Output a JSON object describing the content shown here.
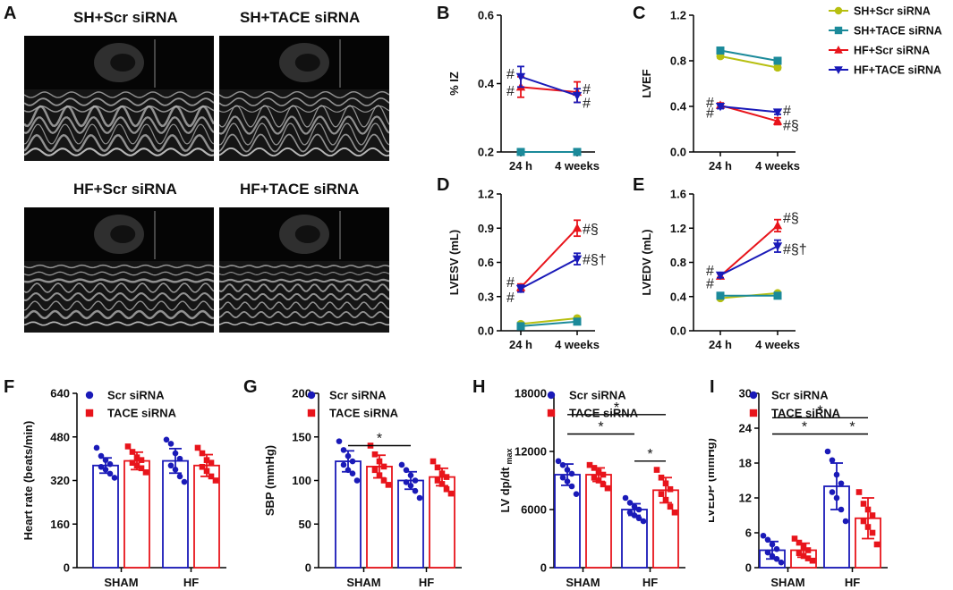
{
  "panel_labels": [
    "A",
    "B",
    "C",
    "D",
    "E",
    "F",
    "G",
    "H",
    "I"
  ],
  "echo": {
    "panels": [
      {
        "title": "SH+Scr siRNA"
      },
      {
        "title": "SH+TACE siRNA"
      },
      {
        "title": "HF+Scr siRNA"
      },
      {
        "title": "HF+TACE siRNA"
      }
    ]
  },
  "legend_top": {
    "entries": [
      {
        "name": "SH+Scr siRNA",
        "color": "#b7bf10",
        "marker": "circle"
      },
      {
        "name": "SH+TACE siRNA",
        "color": "#1b8a9a",
        "marker": "square"
      },
      {
        "name": "HF+Scr siRNA",
        "color": "#e8141b",
        "marker": "triangle-up"
      },
      {
        "name": "HF+TACE siRNA",
        "color": "#1a1ab8",
        "marker": "triangle-down"
      }
    ]
  },
  "chart_data": [
    {
      "id": "B",
      "type": "line",
      "ylabel": "% IZ",
      "xlabel": "",
      "categories": [
        "24 h",
        "4 weeks"
      ],
      "ylim": [
        0.2,
        0.6
      ],
      "yticks": [
        "0.2",
        "0.4",
        "0.6"
      ],
      "series": [
        {
          "name": "SH+Scr siRNA",
          "values": [
            0.2,
            0.2
          ],
          "err": [
            0,
            0
          ]
        },
        {
          "name": "SH+TACE siRNA",
          "values": [
            0.2,
            0.2
          ],
          "err": [
            0,
            0
          ]
        },
        {
          "name": "HF+Scr siRNA",
          "values": [
            0.39,
            0.375
          ],
          "err": [
            0.03,
            0.03
          ]
        },
        {
          "name": "HF+TACE siRNA",
          "values": [
            0.42,
            0.365
          ],
          "err": [
            0.03,
            0.02
          ]
        }
      ],
      "annotations": [
        {
          "text": "#",
          "x": 0,
          "y": 0.43,
          "side": "left"
        },
        {
          "text": "#",
          "x": 0,
          "y": 0.38,
          "side": "left"
        },
        {
          "text": "#",
          "x": 1,
          "y": 0.385,
          "side": "right"
        },
        {
          "text": "#",
          "x": 1,
          "y": 0.345,
          "side": "right"
        }
      ]
    },
    {
      "id": "C",
      "type": "line",
      "ylabel": "LVEF",
      "xlabel": "",
      "categories": [
        "24 h",
        "4 weeks"
      ],
      "ylim": [
        0,
        1.2
      ],
      "yticks": [
        "0.0",
        "0.4",
        "0.8",
        "1.2"
      ],
      "series": [
        {
          "name": "SH+Scr siRNA",
          "values": [
            0.84,
            0.74
          ],
          "err": [
            0.015,
            0.015
          ]
        },
        {
          "name": "SH+TACE siRNA",
          "values": [
            0.89,
            0.8
          ],
          "err": [
            0.015,
            0.015
          ]
        },
        {
          "name": "HF+Scr siRNA",
          "values": [
            0.41,
            0.27
          ],
          "err": [
            0.02,
            0.03
          ]
        },
        {
          "name": "HF+TACE siRNA",
          "values": [
            0.4,
            0.35
          ],
          "err": [
            0.02,
            0.02
          ]
        }
      ],
      "annotations": [
        {
          "text": "#",
          "x": 0,
          "y": 0.44,
          "side": "left"
        },
        {
          "text": "#",
          "x": 0,
          "y": 0.35,
          "side": "left"
        },
        {
          "text": "#",
          "x": 1,
          "y": 0.37,
          "side": "right"
        },
        {
          "text": "#§",
          "x": 1,
          "y": 0.24,
          "side": "right"
        }
      ]
    },
    {
      "id": "D",
      "type": "line",
      "ylabel": "LVESV (mL)",
      "xlabel": "",
      "categories": [
        "24 h",
        "4 weeks"
      ],
      "ylim": [
        0,
        1.2
      ],
      "yticks": [
        "0.0",
        "0.3",
        "0.6",
        "0.9",
        "1.2"
      ],
      "series": [
        {
          "name": "SH+Scr siRNA",
          "values": [
            0.06,
            0.11
          ],
          "err": [
            0.01,
            0.01
          ]
        },
        {
          "name": "SH+TACE siRNA",
          "values": [
            0.04,
            0.08
          ],
          "err": [
            0.01,
            0.01
          ]
        },
        {
          "name": "HF+Scr siRNA",
          "values": [
            0.38,
            0.9
          ],
          "err": [
            0.03,
            0.07
          ]
        },
        {
          "name": "HF+TACE siRNA",
          "values": [
            0.37,
            0.63
          ],
          "err": [
            0.03,
            0.05
          ]
        }
      ],
      "annotations": [
        {
          "text": "#",
          "x": 0,
          "y": 0.43,
          "side": "left"
        },
        {
          "text": "#",
          "x": 0,
          "y": 0.3,
          "side": "left"
        },
        {
          "text": "#§",
          "x": 1,
          "y": 0.9,
          "side": "right"
        },
        {
          "text": "#§†",
          "x": 1,
          "y": 0.63,
          "side": "right"
        }
      ]
    },
    {
      "id": "E",
      "type": "line",
      "ylabel": "LVEDV (mL)",
      "xlabel": "",
      "categories": [
        "24 h",
        "4 weeks"
      ],
      "ylim": [
        0,
        1.6
      ],
      "yticks": [
        "0.0",
        "0.4",
        "0.8",
        "1.2",
        "1.6"
      ],
      "series": [
        {
          "name": "SH+Scr siRNA",
          "values": [
            0.38,
            0.44
          ],
          "err": [
            0.01,
            0.01
          ]
        },
        {
          "name": "SH+TACE siRNA",
          "values": [
            0.41,
            0.41
          ],
          "err": [
            0.01,
            0.01
          ]
        },
        {
          "name": "HF+Scr siRNA",
          "values": [
            0.64,
            1.23
          ],
          "err": [
            0.03,
            0.07
          ]
        },
        {
          "name": "HF+TACE siRNA",
          "values": [
            0.65,
            0.99
          ],
          "err": [
            0.03,
            0.07
          ]
        }
      ],
      "annotations": [
        {
          "text": "#",
          "x": 0,
          "y": 0.71,
          "side": "left"
        },
        {
          "text": "#",
          "x": 0,
          "y": 0.56,
          "side": "left"
        },
        {
          "text": "#§",
          "x": 1,
          "y": 1.33,
          "side": "right"
        },
        {
          "text": "#§†",
          "x": 1,
          "y": 0.96,
          "side": "right"
        }
      ]
    },
    {
      "id": "F",
      "type": "bar",
      "ylabel": "Heart rate (beats/min)",
      "xlabel": "",
      "categories": [
        "SHAM",
        "HF"
      ],
      "ylim": [
        0,
        640
      ],
      "yticks": [
        "0",
        "160",
        "320",
        "480",
        "640"
      ],
      "series": [
        {
          "name": "Scr siRNA",
          "values": [
            375,
            392
          ],
          "err": [
            28,
            45
          ],
          "points": [
            [
              440,
              410,
              395,
              380,
              370,
              360,
              345,
              330
            ],
            [
              470,
              455,
              420,
              400,
              375,
              360,
              335,
              315
            ]
          ]
        },
        {
          "name": "TACE siRNA",
          "values": [
            392,
            375
          ],
          "err": [
            32,
            40
          ],
          "points": [
            [
              445,
              425,
              405,
              395,
              385,
              375,
              365,
              350
            ],
            [
              440,
              420,
              395,
              385,
              370,
              355,
              335,
              320
            ]
          ]
        }
      ],
      "significance": []
    },
    {
      "id": "G",
      "type": "bar",
      "ylabel": "SBP (mmHg)",
      "xlabel": "",
      "categories": [
        "SHAM",
        "HF"
      ],
      "ylim": [
        0,
        200
      ],
      "yticks": [
        "0",
        "50",
        "100",
        "150",
        "200"
      ],
      "series": [
        {
          "name": "Scr siRNA",
          "values": [
            122,
            100
          ],
          "err": [
            12,
            10
          ],
          "points": [
            [
              145,
              135,
              128,
              122,
              118,
              112,
              108,
              100
            ],
            [
              118,
              112,
              106,
              100,
              98,
              94,
              88,
              80
            ]
          ]
        },
        {
          "name": "TACE siRNA",
          "values": [
            116,
            104
          ],
          "err": [
            13,
            10
          ],
          "points": [
            [
              140,
              130,
              122,
              116,
              112,
              106,
              100,
              95
            ],
            [
              122,
              115,
              108,
              104,
              100,
              96,
              90,
              85
            ]
          ]
        }
      ],
      "significance": [
        {
          "from": [
            0,
            0
          ],
          "to": [
            1,
            0
          ],
          "text": "*",
          "y": 140
        }
      ]
    },
    {
      "id": "H",
      "type": "bar",
      "ylabel": "LV dp/dt",
      "ylabel_sub": "max",
      "xlabel": "",
      "categories": [
        "SHAM",
        "HF"
      ],
      "ylim": [
        0,
        18000
      ],
      "yticks": [
        "0",
        "6000",
        "12000",
        "18000"
      ],
      "series": [
        {
          "name": "Scr siRNA",
          "values": [
            9600,
            6000
          ],
          "err": [
            1100,
            600
          ],
          "points": [
            [
              11000,
              10600,
              10100,
              9700,
              9300,
              8900,
              8400,
              7600
            ],
            [
              7200,
              6700,
              6300,
              6000,
              5700,
              5400,
              5100,
              4800
            ]
          ]
        },
        {
          "name": "TACE siRNA",
          "values": [
            9600,
            8000
          ],
          "err": [
            700,
            1300
          ],
          "points": [
            [
              10600,
              10300,
              9900,
              9600,
              9300,
              9000,
              8600,
              8200
            ],
            [
              10100,
              9300,
              8700,
              8100,
              7600,
              7000,
              6300,
              5700
            ]
          ]
        }
      ],
      "significance": [
        {
          "from": [
            0,
            0
          ],
          "to": [
            1,
            1
          ],
          "text": "*",
          "y": 15800
        },
        {
          "from": [
            0,
            0
          ],
          "to": [
            1,
            0
          ],
          "text": "*",
          "y": 13800
        },
        {
          "from": [
            1,
            0
          ],
          "to": [
            1,
            1
          ],
          "text": "*",
          "y": 11000
        }
      ]
    },
    {
      "id": "I",
      "type": "bar",
      "ylabel": "LVEDP (mmHg)",
      "xlabel": "",
      "categories": [
        "SHAM",
        "HF"
      ],
      "ylim": [
        0,
        30
      ],
      "yticks": [
        "0",
        "6",
        "12",
        "18",
        "24",
        "30"
      ],
      "series": [
        {
          "name": "Scr siRNA",
          "values": [
            3,
            14
          ],
          "err": [
            1.5,
            4
          ],
          "points": [
            [
              5.5,
              4.8,
              4,
              3.2,
              2.6,
              2,
              1.5,
              0.9
            ],
            [
              20,
              18.5,
              16,
              14.5,
              13,
              12,
              10,
              8
            ]
          ]
        },
        {
          "name": "TACE siRNA",
          "values": [
            3,
            8.5
          ],
          "err": [
            1.2,
            3.5
          ],
          "points": [
            [
              5,
              4.3,
              3.6,
              3,
              2.5,
              2,
              1.6,
              1.2
            ],
            [
              13,
              11,
              10,
              9,
              8,
              7,
              6,
              4
            ]
          ]
        }
      ],
      "significance": [
        {
          "from": [
            0,
            0
          ],
          "to": [
            1,
            1
          ],
          "text": "*",
          "y": 25.8
        },
        {
          "from": [
            0,
            0
          ],
          "to": [
            1,
            0
          ],
          "text": "*",
          "y": 23
        },
        {
          "from": [
            1,
            0
          ],
          "to": [
            1,
            1
          ],
          "text": "*",
          "y": 23
        }
      ]
    }
  ],
  "bar_legend": {
    "entries": [
      {
        "name": "Scr siRNA",
        "color": "#1a1ab8",
        "marker": "circle"
      },
      {
        "name": "TACE siRNA",
        "color": "#e8141b",
        "marker": "square"
      }
    ]
  }
}
